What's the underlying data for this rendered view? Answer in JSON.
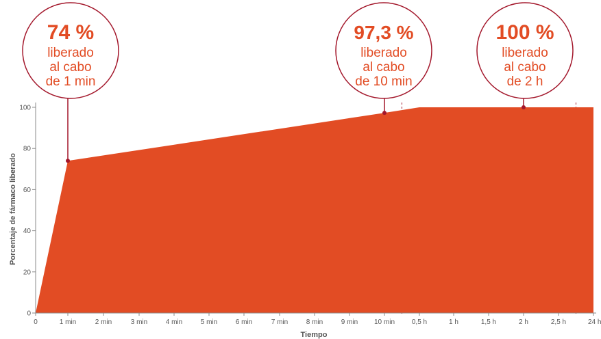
{
  "chart_data": {
    "type": "area",
    "xlabel": "Tiempo",
    "ylabel": "Porcentaje de fármaco liberado",
    "ylim": [
      0,
      100
    ],
    "y_ticks": [
      0,
      20,
      40,
      60,
      80,
      100
    ],
    "x_tick_labels": [
      "0",
      "1 min",
      "2 min",
      "3 min",
      "4 min",
      "5 min",
      "6 min",
      "7 min",
      "8 min",
      "9 min",
      "10 min",
      "0,5 h",
      "1 h",
      "1,5 h",
      "2 h",
      "2,5 h",
      "24 h"
    ],
    "series": [
      {
        "x": [
          "0",
          "1 min",
          "10 min",
          "0,5 h",
          "2 h",
          "24 h"
        ],
        "values": [
          0,
          74,
          97.3,
          100,
          100,
          100
        ]
      }
    ],
    "color": "#e24c24",
    "callouts": [
      {
        "x": "1 min",
        "y": 74,
        "value": "74 %",
        "line1": "liberado",
        "line2": "al cabo",
        "line3": "de 1 min"
      },
      {
        "x": "10 min",
        "y": 97.3,
        "value": "97,3 %",
        "line1": "liberado",
        "line2": "al cabo",
        "line3": "de 10 min"
      },
      {
        "x": "2 h",
        "y": 100,
        "value": "100 %",
        "line1": "liberado",
        "line2": "al cabo",
        "line3": "de 2 h"
      }
    ],
    "axis_breaks": [
      "10 min",
      "2,5 h"
    ],
    "grid": false
  }
}
